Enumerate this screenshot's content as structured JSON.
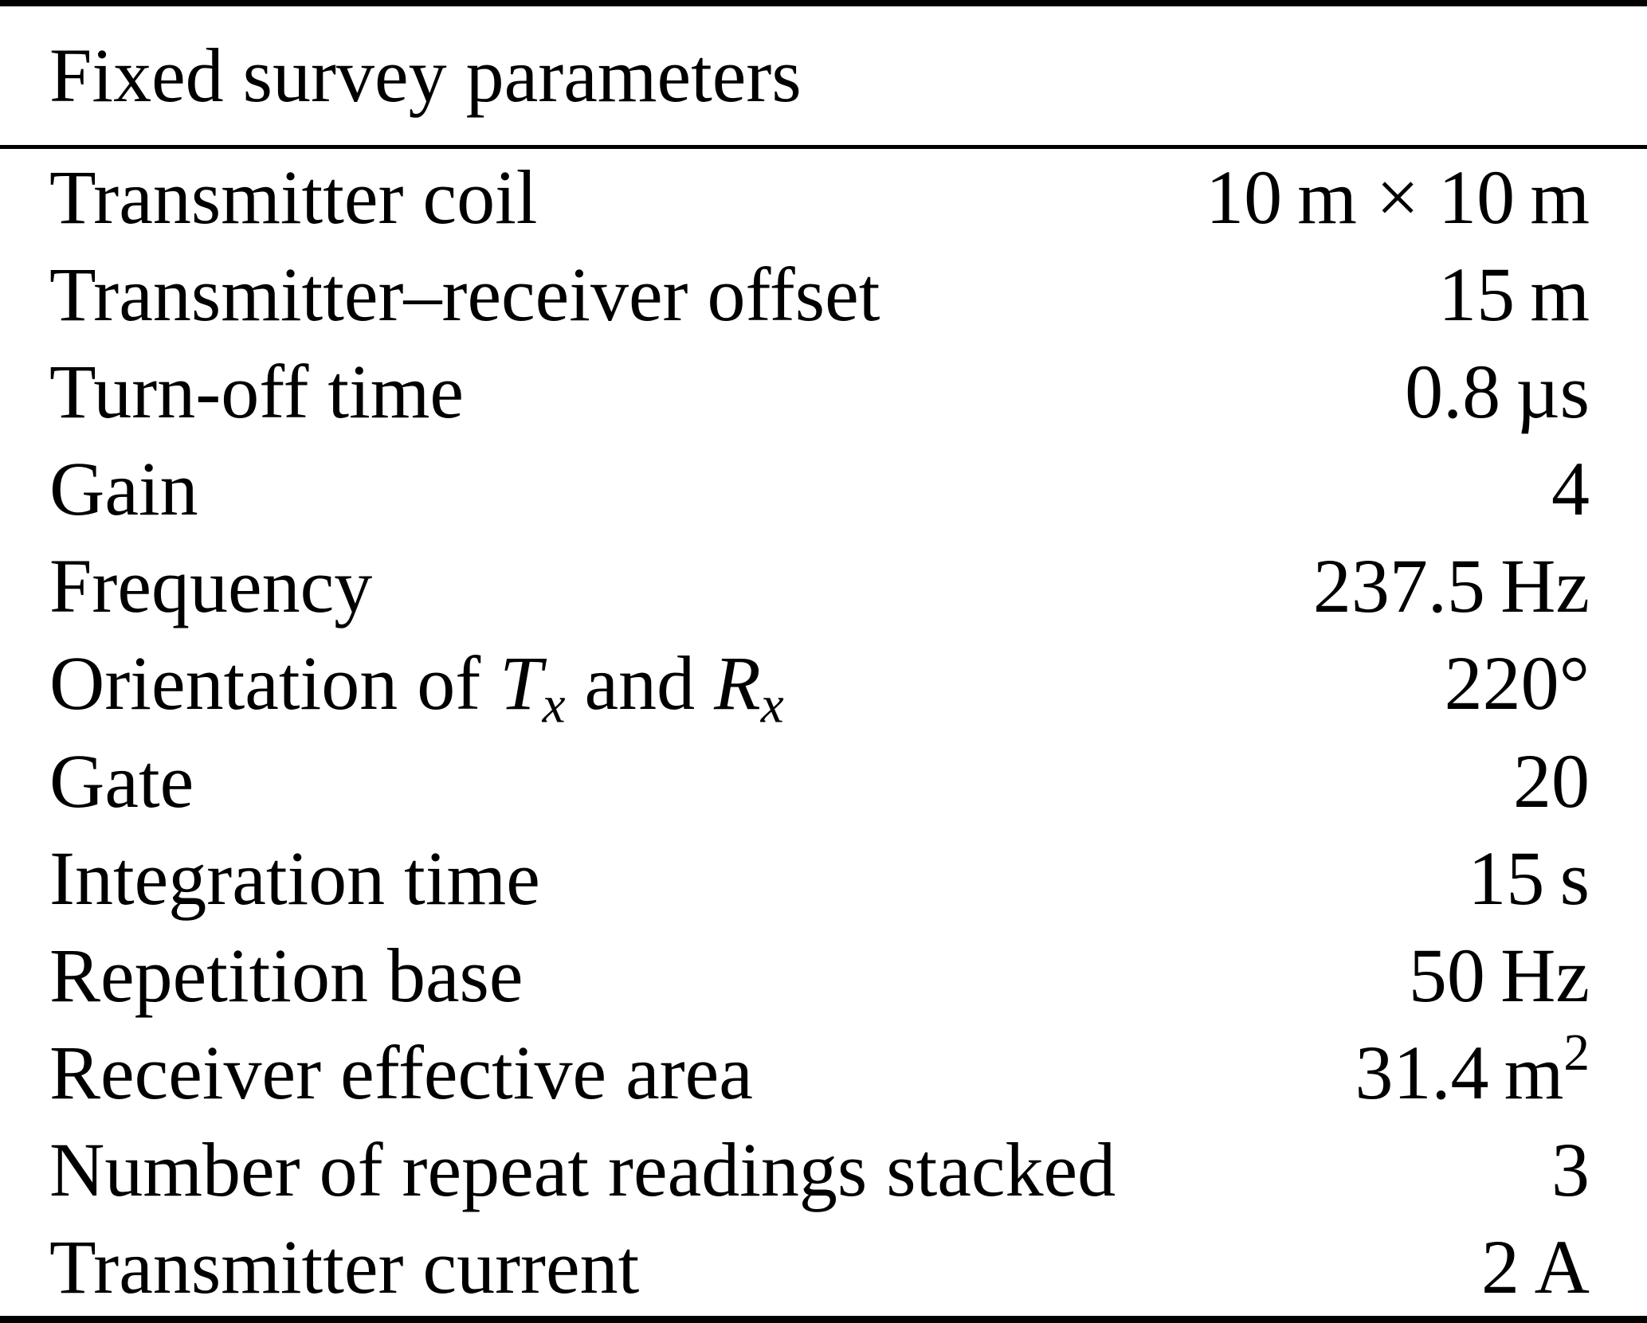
{
  "colors": {
    "background": "#ffffff",
    "text": "#000000",
    "rule": "#000000"
  },
  "table": {
    "title": "Fixed survey parameters",
    "rows": [
      {
        "label": [
          {
            "t": "Transmitter coil"
          }
        ],
        "value": [
          {
            "t": "10 m × 10 m"
          }
        ]
      },
      {
        "label": [
          {
            "t": "Transmitter–receiver offset"
          }
        ],
        "value": [
          {
            "t": "15 m"
          }
        ]
      },
      {
        "label": [
          {
            "t": "Turn-off time"
          }
        ],
        "value": [
          {
            "t": "0.8 µs"
          }
        ]
      },
      {
        "label": [
          {
            "t": "Gain"
          }
        ],
        "value": [
          {
            "t": "4"
          }
        ]
      },
      {
        "label": [
          {
            "t": "Frequency"
          }
        ],
        "value": [
          {
            "t": "237.5 Hz"
          }
        ]
      },
      {
        "label": [
          {
            "t": "Orientation of "
          },
          {
            "i": "T"
          },
          {
            "sub": "x"
          },
          {
            "t": " and "
          },
          {
            "i": "R"
          },
          {
            "sub": "x"
          }
        ],
        "value": [
          {
            "t": "220°"
          }
        ]
      },
      {
        "label": [
          {
            "t": "Gate"
          }
        ],
        "value": [
          {
            "t": "20"
          }
        ]
      },
      {
        "label": [
          {
            "t": "Integration time"
          }
        ],
        "value": [
          {
            "t": "15 s"
          }
        ]
      },
      {
        "label": [
          {
            "t": "Repetition base"
          }
        ],
        "value": [
          {
            "t": "50 Hz"
          }
        ]
      },
      {
        "label": [
          {
            "t": "Receiver effective area"
          }
        ],
        "value": [
          {
            "t": "31.4 m"
          },
          {
            "sup": "2"
          }
        ]
      },
      {
        "label": [
          {
            "t": "Number of repeat readings stacked"
          }
        ],
        "value": [
          {
            "t": "3"
          }
        ]
      },
      {
        "label": [
          {
            "t": "Transmitter current"
          }
        ],
        "value": [
          {
            "t": "2 A"
          }
        ]
      }
    ]
  }
}
